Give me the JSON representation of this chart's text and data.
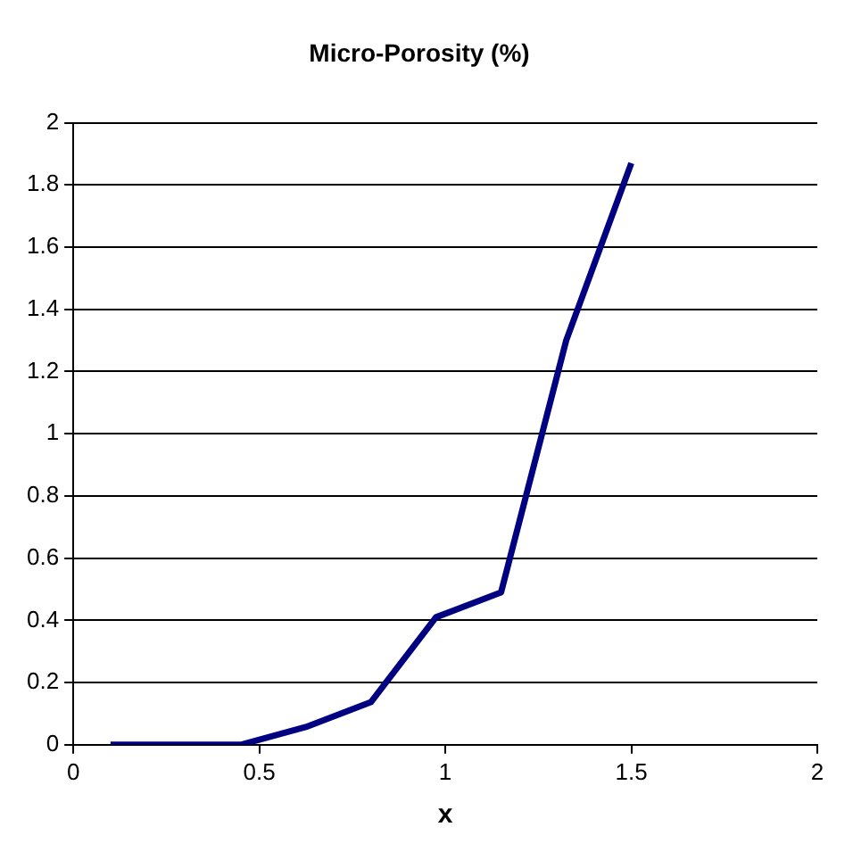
{
  "chart_data": {
    "type": "line",
    "title": "Micro-Porosity (%)",
    "xlabel": "x",
    "x": [
      0.1,
      0.275,
      0.45,
      0.625,
      0.8,
      0.975,
      1.15,
      1.325,
      1.5
    ],
    "series": [
      {
        "color": "#000080",
        "values": [
          0,
          0,
          0,
          0.057,
          0.137,
          0.41,
          0.49,
          1.3,
          1.87
        ]
      }
    ],
    "xlim": [
      0,
      2
    ],
    "xticks": [
      0,
      0.5,
      1,
      1.5,
      2
    ],
    "ylim": [
      0,
      2
    ],
    "yticks": [
      0,
      0.2,
      0.4,
      0.6,
      0.8,
      1,
      1.2,
      1.4,
      1.6,
      1.8,
      2
    ],
    "grid": "y",
    "legend": false,
    "marker": "none",
    "line_style": "solid"
  }
}
